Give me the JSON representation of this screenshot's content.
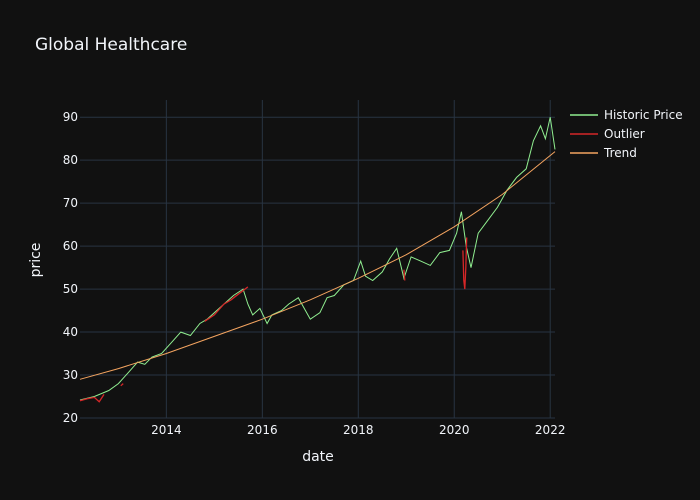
{
  "chart_data": {
    "type": "line",
    "title": "Global Healthcare",
    "xlabel": "date",
    "ylabel": "price",
    "x_range": [
      2012.2,
      2022.1
    ],
    "ylim": [
      20,
      94
    ],
    "x_ticks": [
      2014,
      2016,
      2018,
      2020,
      2022
    ],
    "x_tick_labels": [
      "2014",
      "2016",
      "2018",
      "2020",
      "2022"
    ],
    "y_ticks": [
      20,
      30,
      40,
      50,
      60,
      70,
      80,
      90
    ],
    "y_tick_labels": [
      "20",
      "30",
      "40",
      "50",
      "60",
      "70",
      "80",
      "90"
    ],
    "grid": true,
    "legend_position": "top-right",
    "background": "#111111",
    "series": [
      {
        "name": "Historic Price",
        "color": "#90ee90",
        "points": [
          [
            2012.2,
            24.2
          ],
          [
            2012.5,
            25.0
          ],
          [
            2012.8,
            26.4
          ],
          [
            2013.0,
            28.0
          ],
          [
            2013.2,
            30.5
          ],
          [
            2013.4,
            33.0
          ],
          [
            2013.55,
            32.5
          ],
          [
            2013.7,
            34.2
          ],
          [
            2013.9,
            35.0
          ],
          [
            2014.1,
            37.5
          ],
          [
            2014.3,
            40.0
          ],
          [
            2014.5,
            39.2
          ],
          [
            2014.7,
            42.0
          ],
          [
            2014.85,
            43.0
          ],
          [
            2015.0,
            44.5
          ],
          [
            2015.2,
            46.5
          ],
          [
            2015.4,
            48.5
          ],
          [
            2015.6,
            50.0
          ],
          [
            2015.7,
            46.5
          ],
          [
            2015.8,
            44.0
          ],
          [
            2015.95,
            45.5
          ],
          [
            2016.1,
            42.0
          ],
          [
            2016.2,
            44.0
          ],
          [
            2016.4,
            45.0
          ],
          [
            2016.55,
            46.5
          ],
          [
            2016.75,
            48.0
          ],
          [
            2016.9,
            45.0
          ],
          [
            2017.0,
            43.0
          ],
          [
            2017.2,
            44.5
          ],
          [
            2017.35,
            48.0
          ],
          [
            2017.5,
            48.5
          ],
          [
            2017.7,
            51.0
          ],
          [
            2017.9,
            52.0
          ],
          [
            2018.05,
            56.5
          ],
          [
            2018.15,
            53.0
          ],
          [
            2018.3,
            52.0
          ],
          [
            2018.5,
            54.0
          ],
          [
            2018.65,
            57.0
          ],
          [
            2018.8,
            59.5
          ],
          [
            2018.95,
            52.5
          ],
          [
            2019.1,
            57.5
          ],
          [
            2019.3,
            56.5
          ],
          [
            2019.5,
            55.5
          ],
          [
            2019.7,
            58.5
          ],
          [
            2019.9,
            59.0
          ],
          [
            2020.05,
            63.0
          ],
          [
            2020.15,
            68.0
          ],
          [
            2020.25,
            60.0
          ],
          [
            2020.35,
            55.0
          ],
          [
            2020.5,
            63.0
          ],
          [
            2020.7,
            66.0
          ],
          [
            2020.9,
            69.0
          ],
          [
            2021.1,
            73.0
          ],
          [
            2021.3,
            76.0
          ],
          [
            2021.5,
            78.0
          ],
          [
            2021.65,
            84.5
          ],
          [
            2021.8,
            88.0
          ],
          [
            2021.9,
            85.0
          ],
          [
            2022.0,
            90.0
          ],
          [
            2022.1,
            82.5
          ]
        ]
      },
      {
        "name": "Outlier",
        "color": "#d62728",
        "segments": [
          [
            [
              2012.2,
              24.0
            ],
            [
              2012.35,
              24.5
            ],
            [
              2012.5,
              24.8
            ],
            [
              2012.6,
              23.8
            ],
            [
              2012.7,
              25.5
            ]
          ],
          [
            [
              2013.05,
              27.5
            ],
            [
              2013.1,
              28.0
            ]
          ],
          [
            [
              2014.8,
              42.5
            ],
            [
              2015.0,
              44.0
            ],
            [
              2015.2,
              46.5
            ],
            [
              2015.35,
              47.5
            ],
            [
              2015.5,
              48.8
            ],
            [
              2015.7,
              50.5
            ]
          ],
          [
            [
              2018.95,
              54.5
            ],
            [
              2018.97,
              52.0
            ]
          ],
          [
            [
              2020.18,
              59.0
            ],
            [
              2020.2,
              52.0
            ],
            [
              2020.22,
              50.0
            ],
            [
              2020.24,
              55.0
            ],
            [
              2020.26,
              62.0
            ]
          ]
        ]
      },
      {
        "name": "Trend",
        "color": "#f4a460",
        "points": [
          [
            2012.2,
            29.0
          ],
          [
            2013.0,
            31.5
          ],
          [
            2014.0,
            35.0
          ],
          [
            2015.0,
            39.0
          ],
          [
            2016.0,
            43.0
          ],
          [
            2017.0,
            47.5
          ],
          [
            2018.0,
            52.5
          ],
          [
            2019.0,
            58.0
          ],
          [
            2020.0,
            64.5
          ],
          [
            2021.0,
            72.0
          ],
          [
            2022.1,
            82.0
          ]
        ]
      }
    ]
  }
}
